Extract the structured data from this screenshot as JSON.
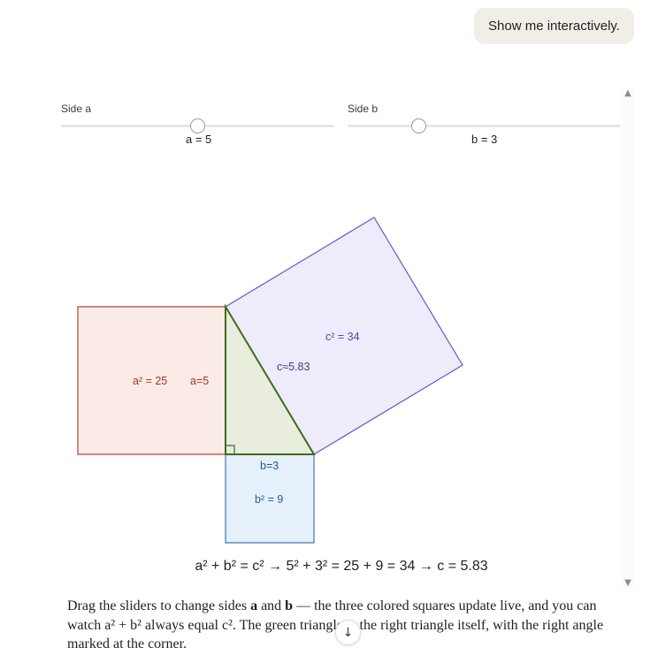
{
  "user_message": "Show me interactively.",
  "colors": {
    "square_a_fill": "#faebe6",
    "square_a_stroke": "#a84b36",
    "label_a": "#9e3a22",
    "square_b_fill": "#e6f0fa",
    "square_b_stroke": "#3e78b5",
    "label_b": "#1f5fa0",
    "square_c_fill": "#eeecfb",
    "square_c_stroke": "#6659c2",
    "label_c": "#5546b0",
    "triangle_fill": "#e8eddd",
    "triangle_stroke": "#3f6b1d",
    "label_triangle": "#3e3d8f"
  },
  "slider_a": {
    "label": "Side a",
    "value_text": "a = 5",
    "value": 5
  },
  "slider_b": {
    "label": "Side b",
    "value_text": "b = 3",
    "value": 3
  },
  "diagram": {
    "a": 5,
    "b": 3,
    "c": 5.83,
    "label_a_area": "a² = 25",
    "label_a_side": "a=5",
    "label_b_side": "b=3",
    "label_b_area": "b² = 9",
    "label_c_area": "c² = 34",
    "label_c_side": "c≈5.83"
  },
  "equation": "a² + b² = c² → 5² + 3² = 25 + 9 = 34 → c = 5.83",
  "explanation": {
    "part1": "Drag the sliders to change sides ",
    "a": "a",
    "part2": " and ",
    "b": "b",
    "part3": " — the three colored squares update live, and you can watch a² + b² always equal c². The green triangle is the right triangle itself, with the right angle marked at the corner."
  },
  "scroll": {
    "up_icon": "▲",
    "down_icon": "▼",
    "jump_icon": "↓"
  }
}
